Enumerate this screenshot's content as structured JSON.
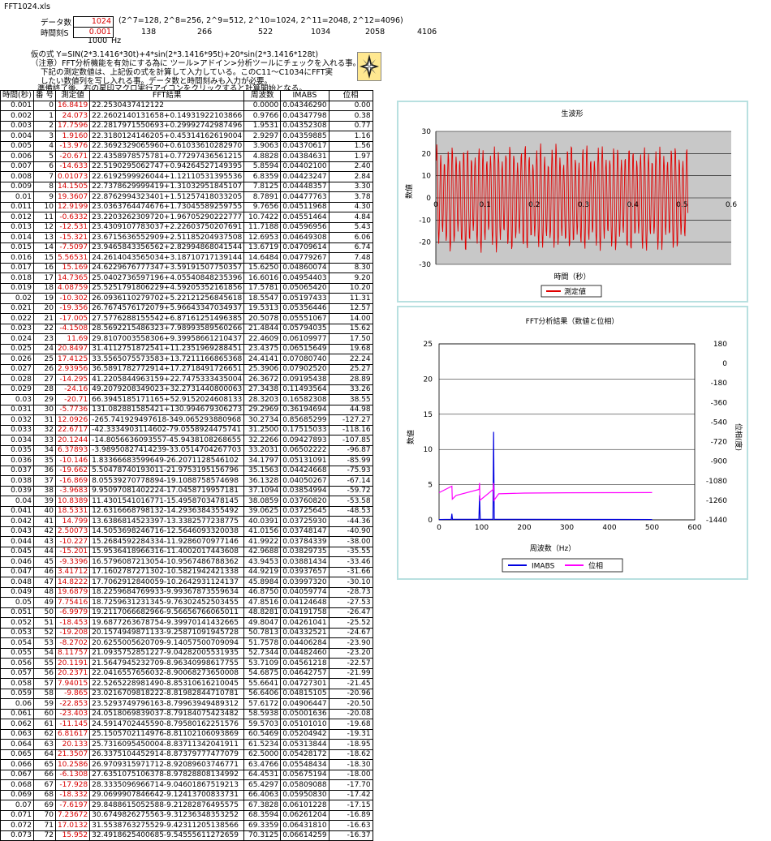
{
  "file_name": "FFT1024.xls",
  "params": {
    "data_count_label": "データ数",
    "data_count_value": "1024",
    "data_count_hint": "(2^7=128, 2^8=256, 2^9=512, 2^10=1024, 2^11=2048, 2^12=4096)",
    "time_step_label": "時間刻S",
    "time_step_value": "0.001",
    "row3_values": [
      "138",
      "266",
      "522",
      "1034",
      "2058",
      "4106"
    ],
    "freq_value": "1000",
    "freq_unit": "Hz"
  },
  "notes": {
    "line1": "仮の式  Y=SIN(2*3.1416*30t)+4*sin(2*3.1416*95t)+20*sin(2*3.1416*128t)",
    "line2": "（注意）FFT分析機能を有効にする為に ツール>アドイン>分析ツールにチェックを入れる事。",
    "line3": "下記の測定数値は、上記仮の式を計算して入力している。このC11～C1034にFFT実",
    "line4": "したい数値列を写し入れる事。データ数と時間刻みも入力が必要。",
    "line5": "準備終了後、右の星印マクロ実行アイコンをクリックすると計算開始となる。"
  },
  "table": {
    "headers": [
      "時間(秒)",
      "番 号",
      "測定値",
      "FFT結果",
      "周波数",
      "IMABS",
      "位相"
    ],
    "rows": [
      [
        "0.001",
        "0",
        "16.8419",
        "22.2530437412122",
        "0.0000",
        "0.04346290",
        "0.00"
      ],
      [
        "0.002",
        "1",
        "24.073",
        "22.2602140131658+0.14931922103866",
        "0.9766",
        "0.04347798",
        "0.38"
      ],
      [
        "0.003",
        "2",
        "17.7596",
        "22.2817971550693+0.29992742987496",
        "1.9531",
        "0.04352308",
        "0.77"
      ],
      [
        "0.004",
        "3",
        "1.9160",
        "22.3180124146205+0.45314162619004",
        "2.9297",
        "0.04359885",
        "1.16"
      ],
      [
        "0.005",
        "4",
        "-13.976",
        "22.3692329065960+0.61033610282970",
        "3.9063",
        "0.04370617",
        "1.56"
      ],
      [
        "0.006",
        "5",
        "-20.671",
        "22.4358978575781+0.77297436561215",
        "4.8828",
        "0.04384631",
        "1.97"
      ],
      [
        "0.007",
        "6",
        "-14.633",
        "22.5190295062747+0.94264527149395",
        "5.8594",
        "0.04402100",
        "2.40"
      ],
      [
        "0.008",
        "7",
        "0.01073",
        "22.6192599926044+1.12110531395536",
        "6.8359",
        "0.04423247",
        "2.84"
      ],
      [
        "0.009",
        "8",
        "14.1505",
        "22.7378629999419+1.31032951845107",
        "7.8125",
        "0.04448357",
        "3.30"
      ],
      [
        "0.01",
        "9",
        "19.3607",
        "22.8762994323401+1.51257418033205",
        "8.7891",
        "0.04477763",
        "3.78"
      ],
      [
        "0.011",
        "10",
        "12.9199",
        "23.0363764474676+1.73045589259755",
        "9.7656",
        "0.04511968",
        "4.30"
      ],
      [
        "0.012",
        "11",
        "-0.6332",
        "23.2203262309720+1.96705290222777",
        "10.7422",
        "0.04551464",
        "4.84"
      ],
      [
        "0.013",
        "12",
        "-12.531",
        "23.4309107783037+2.22603750207691",
        "11.7188",
        "0.04596956",
        "5.43"
      ],
      [
        "0.014",
        "13",
        "-15.321",
        "23.6715636552909+2.51185204937508",
        "12.6953",
        "0.04649308",
        "6.06"
      ],
      [
        "0.015",
        "14",
        "-7.5097",
        "23.9465843356562+2.82994868041544",
        "13.6719",
        "0.04709614",
        "6.74"
      ],
      [
        "0.016",
        "15",
        "5.56531",
        "24.2614043565034+3.18710717139144",
        "14.6484",
        "0.04779267",
        "7.48"
      ],
      [
        "0.017",
        "16",
        "15.169",
        "24.6229676777347+3.59191507750357",
        "15.6250",
        "0.04860074",
        "8.30"
      ],
      [
        "0.018",
        "17",
        "14.7365",
        "25.0402736597196+4.05540848235396",
        "16.6016",
        "0.04954403",
        "9.20"
      ],
      [
        "0.019",
        "18",
        "4.08759",
        "25.5251791806229+4.59205352161856",
        "17.5781",
        "0.05065420",
        "10.20"
      ],
      [
        "0.02",
        "19",
        "-10.302",
        "26.0936110279702+5.22121256845618",
        "18.5547",
        "0.05197433",
        "11.31"
      ],
      [
        "0.021",
        "20",
        "-19.356",
        "26.7674576172079+5.96643347034937",
        "19.5313",
        "0.05356446",
        "12.57"
      ],
      [
        "0.022",
        "21",
        "-17.005",
        "27.5776288155542+6.87161251496385",
        "20.5078",
        "0.05551067",
        "14.00"
      ],
      [
        "0.023",
        "22",
        "-4.1508",
        "28.5692215486323+7.98993589560266",
        "21.4844",
        "0.05794035",
        "15.62"
      ],
      [
        "0.024",
        "23",
        "11.69",
        "29.8107003558306+9.39958661210437",
        "22.4609",
        "0.06109977",
        "17.50"
      ],
      [
        "0.025",
        "24",
        "20.8497",
        "31.4112751872541+11.2351969288451",
        "23.4375",
        "0.06515649",
        "19.68"
      ],
      [
        "0.026",
        "25",
        "17.4125",
        "33.5565075573583+13.7211166865368",
        "24.4141",
        "0.07080740",
        "22.24"
      ],
      [
        "0.027",
        "26",
        "2.93956",
        "36.5891782772914+17.2718491726651",
        "25.3906",
        "0.07902520",
        "25.27"
      ],
      [
        "0.028",
        "27",
        "-14.295",
        "41.2205844963159+22.7475333435004",
        "26.3672",
        "0.09195438",
        "28.89"
      ],
      [
        "0.029",
        "28",
        "-24.16",
        "49.2079208349023+32.2731440800063",
        "27.3438",
        "0.11493564",
        "33.26"
      ],
      [
        "0.03",
        "29",
        "-20.71",
        "66.3945185171165+52.9152024608133",
        "28.3203",
        "0.16582308",
        "38.55"
      ],
      [
        "0.031",
        "30",
        "-5.7736",
        "131.082881585421+130.994679306273",
        "29.2969",
        "0.36194694",
        "44.98"
      ],
      [
        "0.032",
        "31",
        "12.0926",
        "-265.741929497618-349.065293880968",
        "30.2734",
        "0.85685299",
        "-127.27"
      ],
      [
        "0.033",
        "32",
        "22.6717",
        "-42.3334903114602-79.0558924475741",
        "31.2500",
        "0.17515033",
        "-118.16"
      ],
      [
        "0.034",
        "33",
        "20.1244",
        "-14.8056636093557-45.9438108268655",
        "32.2266",
        "0.09427893",
        "-107.85"
      ],
      [
        "0.035",
        "34",
        "6.37893",
        "-3.98950827414239-33.0514704267703",
        "33.2031",
        "0.06502222",
        "-96.87"
      ],
      [
        "0.036",
        "35",
        "-10.146",
        "1.83366683599649-26.2071128546102",
        "34.1797",
        "0.05131091",
        "-85.99"
      ],
      [
        "0.037",
        "36",
        "-19.662",
        "5.50478740193011-21.9753195156796",
        "35.1563",
        "0.04424668",
        "-75.93"
      ],
      [
        "0.038",
        "37",
        "-16.869",
        "8.05539270778894-19.1088758574698",
        "36.1328",
        "0.04050267",
        "-67.14"
      ],
      [
        "0.039",
        "38",
        "-3.9683",
        "9.95097081402224-17.0458719957181",
        "37.1094",
        "0.03854994",
        "-59.72"
      ],
      [
        "0.04",
        "39",
        "10.8389",
        "11.4301541016771-15.4958703478145",
        "38.0859",
        "0.03760820",
        "-53.58"
      ],
      [
        "0.041",
        "40",
        "18.5331",
        "12.6316668798132-14.2936384355492",
        "39.0625",
        "0.03725645",
        "-48.53"
      ],
      [
        "0.042",
        "41",
        "14.799",
        "13.6386814523397-13.3382577238775",
        "40.0391",
        "0.03725930",
        "-44.36"
      ],
      [
        "0.043",
        "42",
        "2.50073",
        "14.5053698246716-12.5646093320038",
        "41.0156",
        "0.03748147",
        "-40.90"
      ],
      [
        "0.044",
        "43",
        "-10.227",
        "15.2684592284334-11.9286070977146",
        "41.9922",
        "0.03784339",
        "-38.00"
      ],
      [
        "0.045",
        "44",
        "-15.201",
        "15.9536418966316-11.4002017443608",
        "42.9688",
        "0.03829735",
        "-35.55"
      ],
      [
        "0.046",
        "45",
        "-9.3396",
        "16.5796087213054-10.9567486788362",
        "43.9453",
        "0.03881434",
        "-33.46"
      ],
      [
        "0.047",
        "46",
        "3.41712",
        "17.1602787271302-10.5821942421338",
        "44.9219",
        "0.03937657",
        "-31.66"
      ],
      [
        "0.048",
        "47",
        "14.8222",
        "17.7062912840059-10.2642931124137",
        "45.8984",
        "0.03997320",
        "-30.10"
      ],
      [
        "0.049",
        "48",
        "19.6879",
        "18.2259684769933-9.99367873559634",
        "46.8750",
        "0.04059774",
        "-28.73"
      ],
      [
        "0.05",
        "49",
        "7.75416",
        "18.7259631231345-9.76302452503455",
        "47.8516",
        "0.04124648",
        "-27.53"
      ],
      [
        "0.051",
        "50",
        "-6.9979",
        "19.2117066682966-9.56656766065011",
        "48.8281",
        "0.04191758",
        "-26.47"
      ],
      [
        "0.052",
        "51",
        "-18.453",
        "19.6877263678754-9.39970141432665",
        "49.8047",
        "0.04261041",
        "-25.52"
      ],
      [
        "0.053",
        "52",
        "-19.208",
        "20.1574949871133-9.25871091945728",
        "50.7813",
        "0.04332521",
        "-24.67"
      ],
      [
        "0.054",
        "53",
        "-8.2702",
        "20.6255005620709-9.14057500709094",
        "51.7578",
        "0.04406284",
        "-23.90"
      ],
      [
        "0.055",
        "54",
        "8.11757",
        "21.0935752851227-9.04282005531935",
        "52.7344",
        "0.04482460",
        "-23.20"
      ],
      [
        "0.056",
        "55",
        "20.1191",
        "21.5647945232709-8.96340998617755",
        "53.7109",
        "0.04561218",
        "-22.57"
      ],
      [
        "0.057",
        "56",
        "20.2371",
        "22.0416557656032-8.90068273650008",
        "54.6875",
        "0.04642757",
        "-21.99"
      ],
      [
        "0.058",
        "57",
        "7.94015",
        "22.5265228981490-8.85310616210045",
        "55.6641",
        "0.04727301",
        "-21.45"
      ],
      [
        "0.059",
        "58",
        "-9.865",
        "23.0216709818222-8.81982844710781",
        "56.6406",
        "0.04815105",
        "-20.96"
      ],
      [
        "0.06",
        "59",
        "-22.853",
        "23.5293749796163-8.79963949489312",
        "57.6172",
        "0.04906447",
        "-20.50"
      ],
      [
        "0.061",
        "60",
        "-23.403",
        "24.0518069839037-8.79184075423482",
        "58.5938",
        "0.05001636",
        "-20.08"
      ],
      [
        "0.062",
        "61",
        "-11.145",
        "24.5914702445590-8.79580162251576",
        "59.5703",
        "0.05101010",
        "-19.68"
      ],
      [
        "0.063",
        "62",
        "6.81617",
        "25.1505702114976-8.81102106093869",
        "60.5469",
        "0.05204942",
        "-19.31"
      ],
      [
        "0.064",
        "63",
        "20.133",
        "25.7316095450004-8.83711342041911",
        "61.5234",
        "0.05313844",
        "-18.95"
      ],
      [
        "0.065",
        "64",
        "21.3507",
        "26.3375104452914-8.87379777477079",
        "62.5000",
        "0.05428172",
        "-18.62"
      ],
      [
        "0.066",
        "65",
        "10.2586",
        "26.9709315971712-8.92089603746771",
        "63.4766",
        "0.05548434",
        "-18.30"
      ],
      [
        "0.067",
        "66",
        "-6.1308",
        "27.6351075106378-8.97828808134992",
        "64.4531",
        "0.05675194",
        "-18.00"
      ],
      [
        "0.068",
        "67",
        "-17.928",
        "28.3335096966714-9.04601867519213",
        "65.4297",
        "0.05809088",
        "-17.70"
      ],
      [
        "0.069",
        "68",
        "-18.332",
        "29.0699907846642-9.12413700833731",
        "66.4063",
        "0.05950830",
        "-17.42"
      ],
      [
        "0.07",
        "69",
        "-7.6197",
        "29.8488615052588-9.21282876495575",
        "67.3828",
        "0.06101228",
        "-17.15"
      ],
      [
        "0.071",
        "70",
        "7.23672",
        "30.6749826275563-9.31236348353252",
        "68.3594",
        "0.06261204",
        "-16.89"
      ],
      [
        "0.072",
        "71",
        "17.0132",
        "31.5538763275529-9.42311205138566",
        "69.3359",
        "0.06431810",
        "-16.63"
      ],
      [
        "0.073",
        "72",
        "15.952",
        "32.4918625400685-9.54555611272659",
        "70.3125",
        "0.06614259",
        "-16.37"
      ]
    ]
  },
  "chart1": {
    "title": "生波形",
    "xlabel": "時間（秒）",
    "ylabel": "数値",
    "legend": "測定値",
    "series_color": "#e00000"
  },
  "chart2": {
    "title": "FFT分析結果（数値と位相）",
    "xlabel": "周波数（Hz）",
    "ylabel_left": "数値",
    "ylabel_right": "位相(度)",
    "legend_imabs": "IMABS",
    "legend_phase": "位相",
    "imabs_color": "#0000e0",
    "phase_color": "#ff00ff"
  },
  "chart_data": [
    {
      "type": "line",
      "title": "生波形",
      "xlabel": "時間（秒）",
      "ylabel": "数値",
      "xlim": [
        0,
        0.6
      ],
      "ylim": [
        -30,
        30
      ],
      "x_ticks": [
        "0",
        "0.1",
        "0.2",
        "0.3",
        "0.4",
        "0.5",
        "0.6"
      ],
      "y_ticks": [
        "30",
        "20",
        "10",
        "0",
        "-10",
        "-20",
        "-30"
      ],
      "series": [
        {
          "name": "測定値",
          "formula_from_sheet": "Y=SIN(2*3.1416*30t)+4*sin(2*3.1416*95t)+20*sin(2*3.1416*128t)",
          "x_start": 0.001,
          "x_step": 0.001,
          "count": 512
        }
      ],
      "legend_placement": "bottom"
    },
    {
      "type": "line",
      "title": "FFT分析結果（数値と位相）",
      "xlabel": "周波数（Hz）",
      "ylabel": "数値",
      "y2label": "位相(度)",
      "xlim": [
        0,
        600
      ],
      "ylim": [
        0,
        25
      ],
      "y2lim": [
        -1440,
        180
      ],
      "x_ticks": [
        "0",
        "100",
        "200",
        "300",
        "400",
        "500",
        "600"
      ],
      "y_ticks": [
        "25",
        "20",
        "15",
        "10",
        "5",
        "0"
      ],
      "y2_ticks": [
        "180",
        "0",
        "-180",
        "-360",
        "-540",
        "-720",
        "-900",
        "-1080",
        "-1260",
        "-1440"
      ],
      "series": [
        {
          "name": "IMABS",
          "peaks": [
            {
              "x": 30,
              "y": 0.86
            },
            {
              "x": 95,
              "y": 3.5
            },
            {
              "x": 128,
              "y": 12.5
            }
          ]
        },
        {
          "name": "位相",
          "x": [
            0,
            30,
            31,
            40,
            94,
            95,
            96,
            110,
            127,
            128,
            129,
            140,
            200,
            300,
            400,
            500
          ],
          "y": [
            -1190,
            -1130,
            -1250,
            -1215,
            -1160,
            -1100,
            -1260,
            -1215,
            -1160,
            -1100,
            -1260,
            -1200,
            -1194,
            -1191,
            -1190,
            -1189
          ]
        }
      ],
      "legend_placement": "bottom"
    }
  ]
}
